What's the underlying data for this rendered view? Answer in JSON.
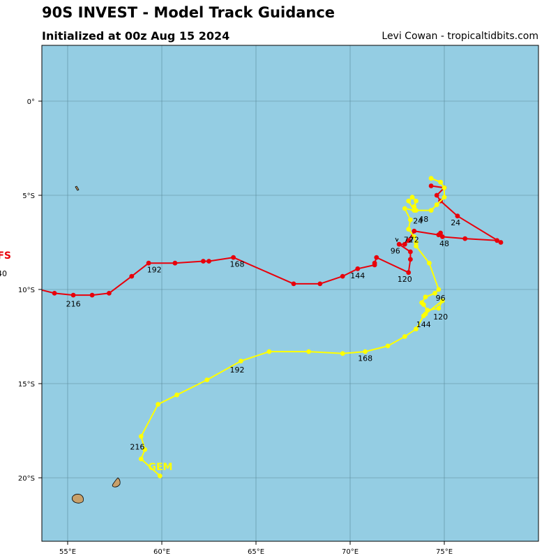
{
  "title": "90S INVEST - Model Track Guidance",
  "subtitle": "Initialized at 00z Aug 15 2024",
  "credit": "Levi Cowan - tropicaltidbits.com",
  "map": {
    "ocean_color": "#94cde3",
    "land_color": "#c8a06a",
    "grid_color": "#5a8a9a",
    "lon_ticks": [
      {
        "lon": 55,
        "label": "55°E"
      },
      {
        "lon": 60,
        "label": "60°E"
      },
      {
        "lon": 65,
        "label": "65°E"
      },
      {
        "lon": 70,
        "label": "70°E"
      },
      {
        "lon": 75,
        "label": "75°E"
      }
    ],
    "lat_ticks": [
      {
        "lat": 0,
        "label": "0°"
      },
      {
        "lat": -5,
        "label": "5°S"
      },
      {
        "lat": -10,
        "label": "10°S"
      },
      {
        "lat": -15,
        "label": "15°S"
      },
      {
        "lat": -20,
        "label": "20°S"
      }
    ]
  },
  "tracks": [
    {
      "model": "GFS",
      "color": "#e8000b",
      "label": "FS",
      "extra_label": "40",
      "points": [
        [
          74.3,
          -4.5
        ],
        [
          75.0,
          -4.6
        ],
        [
          74.6,
          -5.0
        ],
        [
          74.8,
          -5.3
        ],
        [
          75.7,
          -6.1
        ],
        [
          78.0,
          -7.5
        ],
        [
          77.8,
          -7.4
        ],
        [
          76.1,
          -7.3
        ],
        [
          74.9,
          -7.2
        ],
        [
          74.8,
          -7.0
        ],
        [
          74.7,
          -7.1
        ],
        [
          73.4,
          -6.9
        ],
        [
          73.1,
          -7.4
        ],
        [
          72.9,
          -7.6
        ],
        [
          72.6,
          -7.6
        ],
        [
          73.2,
          -8.0
        ],
        [
          73.2,
          -8.4
        ],
        [
          73.1,
          -9.1
        ],
        [
          71.4,
          -8.3
        ],
        [
          71.3,
          -8.6
        ],
        [
          71.3,
          -8.7
        ],
        [
          70.4,
          -8.9
        ],
        [
          69.6,
          -9.3
        ],
        [
          68.4,
          -9.7
        ],
        [
          67.0,
          -9.7
        ],
        [
          63.8,
          -8.3
        ],
        [
          62.5,
          -8.5
        ],
        [
          62.2,
          -8.5
        ],
        [
          60.7,
          -8.6
        ],
        [
          59.3,
          -8.6
        ],
        [
          58.4,
          -9.3
        ],
        [
          57.2,
          -10.2
        ],
        [
          56.3,
          -10.3
        ],
        [
          55.3,
          -10.3
        ],
        [
          54.3,
          -10.2
        ],
        [
          53.5,
          -10.0
        ]
      ],
      "hour_labels": [
        {
          "text": "24",
          "lon": 75.6,
          "lat": -6.6
        },
        {
          "text": "48",
          "lon": 75.0,
          "lat": -7.7
        },
        {
          "text": "72",
          "lon": 73.4,
          "lat": -7.5
        },
        {
          "text": "96",
          "lon": 72.4,
          "lat": -8.1
        },
        {
          "text": "120",
          "lon": 72.9,
          "lat": -9.6
        },
        {
          "text": "144",
          "lon": 70.4,
          "lat": -9.4
        },
        {
          "text": "168",
          "lon": 64.0,
          "lat": -8.8
        },
        {
          "text": "192",
          "lon": 59.6,
          "lat": -9.1
        },
        {
          "text": "216",
          "lon": 55.3,
          "lat": -10.9
        }
      ]
    },
    {
      "model": "GEM",
      "color": "#ffff00",
      "label": "GEM",
      "extra_label": "",
      "points": [
        [
          74.3,
          -4.1
        ],
        [
          74.8,
          -4.3
        ],
        [
          75.0,
          -4.6
        ],
        [
          75.0,
          -5.1
        ],
        [
          74.6,
          -5.5
        ],
        [
          74.3,
          -5.8
        ],
        [
          73.5,
          -5.8
        ],
        [
          73.4,
          -5.6
        ],
        [
          73.5,
          -5.3
        ],
        [
          73.3,
          -5.1
        ],
        [
          73.1,
          -5.3
        ],
        [
          73.4,
          -5.8
        ],
        [
          72.9,
          -5.7
        ],
        [
          73.2,
          -6.3
        ],
        [
          73.1,
          -6.8
        ],
        [
          73.4,
          -7.2
        ],
        [
          73.5,
          -7.5
        ],
        [
          73.5,
          -7.7
        ],
        [
          74.2,
          -8.6
        ],
        [
          74.7,
          -10.0
        ],
        [
          74.5,
          -10.2
        ],
        [
          74.0,
          -10.4
        ],
        [
          73.8,
          -10.7
        ],
        [
          73.9,
          -10.8
        ],
        [
          74.1,
          -11.1
        ],
        [
          74.7,
          -11.0
        ],
        [
          74.9,
          -10.6
        ],
        [
          74.0,
          -11.3
        ],
        [
          73.9,
          -11.4
        ],
        [
          73.5,
          -12.1
        ],
        [
          72.9,
          -12.5
        ],
        [
          72.0,
          -13.0
        ],
        [
          70.8,
          -13.3
        ],
        [
          69.6,
          -13.4
        ],
        [
          67.8,
          -13.3
        ],
        [
          65.7,
          -13.3
        ],
        [
          64.2,
          -13.8
        ],
        [
          62.4,
          -14.8
        ],
        [
          60.8,
          -15.6
        ],
        [
          59.8,
          -16.1
        ],
        [
          58.9,
          -17.8
        ],
        [
          59.1,
          -18.5
        ],
        [
          58.9,
          -19.0
        ],
        [
          59.9,
          -19.9
        ]
      ],
      "hour_labels": [
        {
          "text": "24",
          "lon": 73.6,
          "lat": -6.5
        },
        {
          "text": "48",
          "lon": 73.9,
          "lat": -6.4
        },
        {
          "text": "72",
          "lon": 73.1,
          "lat": -7.5
        },
        {
          "text": "96",
          "lon": 74.8,
          "lat": -10.6
        },
        {
          "text": "120",
          "lon": 74.8,
          "lat": -11.6
        },
        {
          "text": "144",
          "lon": 73.9,
          "lat": -12.0
        },
        {
          "text": "168",
          "lon": 70.8,
          "lat": -13.8
        },
        {
          "text": "192",
          "lon": 64.0,
          "lat": -14.4
        },
        {
          "text": "216",
          "lon": 58.7,
          "lat": -18.5
        }
      ]
    }
  ],
  "islands": [
    {
      "name": "Réunion",
      "lon": 55.5,
      "lat": -21.1
    },
    {
      "name": "Mauritius",
      "lon": 57.5,
      "lat": -20.2
    },
    {
      "name": "Seychelles-Mahe",
      "lon": 55.5,
      "lat": -4.65
    }
  ]
}
